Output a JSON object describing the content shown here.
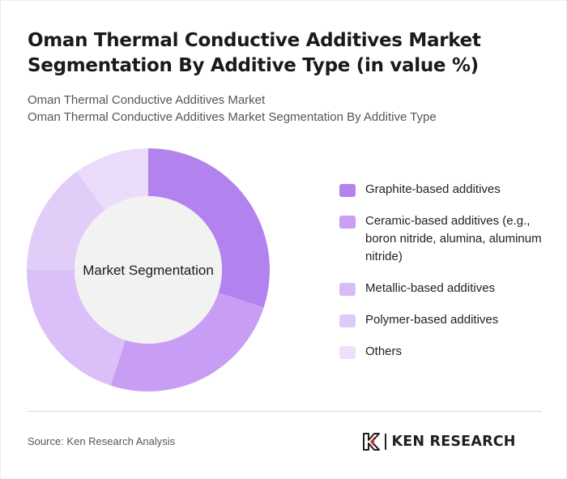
{
  "title": "Oman Thermal Conductive Additives Market Segmentation By Additive Type (in value %)",
  "subtitle_line1": "Oman Thermal Conductive Additives Market",
  "subtitle_line2": "Oman Thermal Conductive Additives Market Segmentation By Additive Type",
  "chart_data": {
    "type": "pie",
    "variant": "donut",
    "center_label": "Market Segmentation",
    "legend_position": "right",
    "categories": [
      "Graphite-based additives",
      "Ceramic-based additives (e.g., boron nitride, alumina, aluminum nitride)",
      "Metallic-based additives",
      "Polymer-based additives",
      "Others"
    ],
    "values": [
      30,
      25,
      20,
      15,
      10
    ],
    "colors": [
      "#b283ee",
      "#c79ef4",
      "#dbbff8",
      "#e2cdf9",
      "#ebdcfb"
    ],
    "legend_colors": [
      "#b283ee",
      "#c89ff3",
      "#d8bbf7",
      "#e0caf9",
      "#ece0fb"
    ]
  },
  "center_disc_color": "#f2f2f2",
  "source": "Source: Ken Research Analysis",
  "brand": {
    "name": "KEN RESEARCH",
    "logo_icon": "ken-research-k-logo"
  }
}
